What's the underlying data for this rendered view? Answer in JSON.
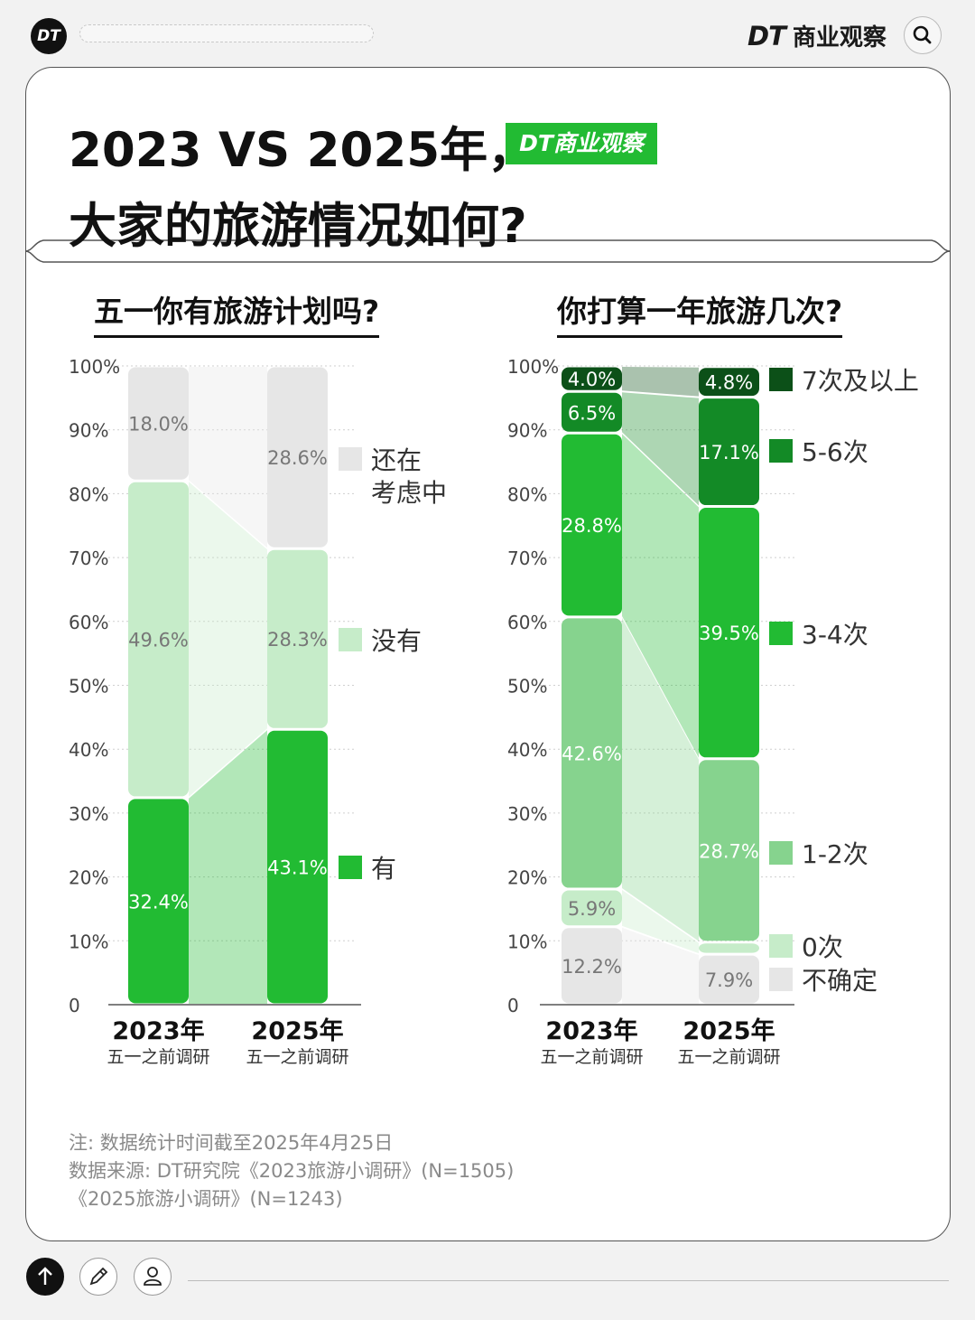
{
  "header": {
    "logo_text": "DT",
    "brand_dt": "DT",
    "brand_name": "商业观察"
  },
  "title": {
    "line1": "2023 VS 2025年，",
    "line2": "大家的旅游情况如何?",
    "badge": "DT商业观察"
  },
  "chart_data": [
    {
      "type": "bar",
      "stacked": true,
      "title": "五一你有旅游计划吗?",
      "categories": [
        "2023年",
        "2025年"
      ],
      "category_sublabels": [
        "五一之前调研",
        "五一之前调研"
      ],
      "series": [
        {
          "name": "有",
          "values": [
            32.4,
            43.1
          ],
          "color": "#22bb33"
        },
        {
          "name": "没有",
          "values": [
            49.6,
            28.3
          ],
          "color": "#c6ecc9"
        },
        {
          "name": "还在考虑中",
          "values": [
            18.0,
            28.6
          ],
          "color": "#e6e6e6"
        }
      ],
      "value_labels": [
        [
          "32.4%",
          "49.6%",
          "18.0%"
        ],
        [
          "43.1%",
          "28.3%",
          "28.6%"
        ]
      ],
      "legend_lines": [
        [
          "有"
        ],
        [
          "没有"
        ],
        [
          "还在",
          "考虑中"
        ]
      ],
      "y_ticks": [
        "0",
        "10%",
        "20%",
        "30%",
        "40%",
        "50%",
        "60%",
        "70%",
        "80%",
        "90%",
        "100%"
      ],
      "ylim": [
        0,
        100
      ],
      "grid": "dotted horizontal",
      "legend_position": "right"
    },
    {
      "type": "bar",
      "stacked": true,
      "title": "你打算一年旅游几次?",
      "categories": [
        "2023年",
        "2025年"
      ],
      "category_sublabels": [
        "五一之前调研",
        "五一之前调研"
      ],
      "series": [
        {
          "name": "不确定",
          "values": [
            12.2,
            7.9
          ],
          "color": "#e6e6e6"
        },
        {
          "name": "0次",
          "values": [
            5.9,
            1.9
          ],
          "color": "#c6ecc9"
        },
        {
          "name": "1-2次",
          "values": [
            42.6,
            28.7
          ],
          "color": "#86d38e"
        },
        {
          "name": "3-4次",
          "values": [
            28.8,
            39.5
          ],
          "color": "#22bb33"
        },
        {
          "name": "5-6次",
          "values": [
            6.5,
            17.1
          ],
          "color": "#138a26"
        },
        {
          "name": "7次及以上",
          "values": [
            4.0,
            4.8
          ],
          "color": "#0c5018"
        }
      ],
      "value_labels": [
        [
          "12.2%",
          "5.9%",
          "42.6%",
          "28.8%",
          "6.5%",
          "4.0%"
        ],
        [
          "7.9%",
          "",
          "28.7%",
          "39.5%",
          "17.1%",
          "4.8%"
        ]
      ],
      "y_ticks": [
        "0",
        "10%",
        "20%",
        "30%",
        "40%",
        "50%",
        "60%",
        "70%",
        "80%",
        "90%",
        "100%"
      ],
      "ylim": [
        0,
        100
      ],
      "grid": "dotted horizontal",
      "legend_position": "right"
    }
  ],
  "notes": {
    "line1": "注: 数据统计时间截至2025年4月25日",
    "line2": "数据来源: DT研究院《2023旅游小调研》(N=1505)",
    "line3": "《2025旅游小调研》(N=1243)"
  },
  "icons": [
    "search-icon",
    "up-arrow-icon",
    "pencil-icon",
    "user-icon"
  ]
}
